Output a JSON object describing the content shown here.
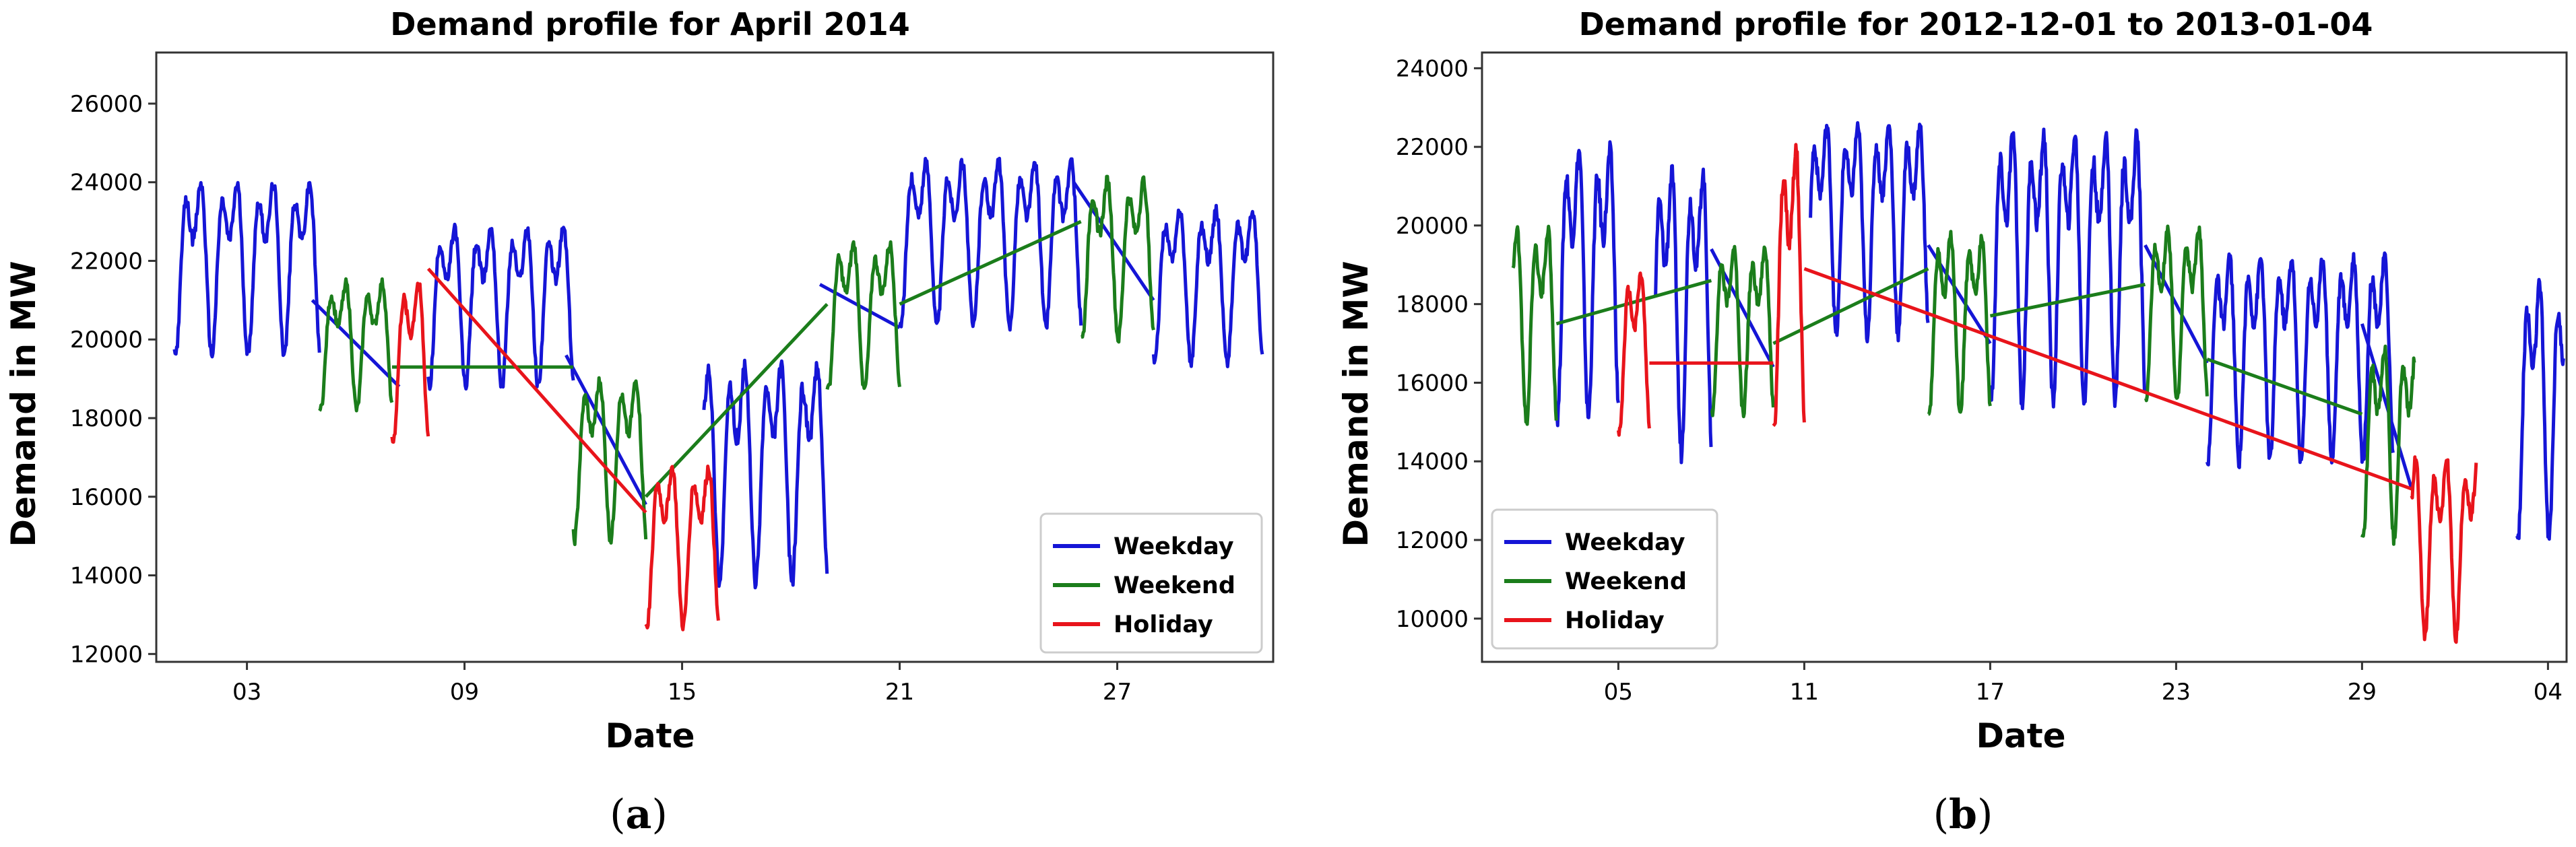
{
  "chart_data": [
    {
      "type": "line",
      "title": "Demand profile for April 2014",
      "xlabel": "Date",
      "ylabel": "Demand in MW",
      "caption": "a",
      "xlim": [
        0.5,
        31.3
      ],
      "ylim": [
        11800,
        27300
      ],
      "x_ticks": [
        3,
        9,
        15,
        21,
        27
      ],
      "x_tick_labels": [
        "03",
        "09",
        "15",
        "21",
        "27"
      ],
      "y_ticks": [
        12000,
        14000,
        16000,
        18000,
        20000,
        22000,
        24000,
        26000
      ],
      "y_tick_labels": [
        "12000",
        "14000",
        "16000",
        "18000",
        "20000",
        "22000",
        "24000",
        "26000"
      ],
      "legend": {
        "location": "lower-right",
        "entries": [
          "Weekday",
          "Weekend",
          "Holiday"
        ]
      },
      "series": [
        {
          "name": "Weekday",
          "color": "#1515d6",
          "profile": {
            "segments": [
              {
                "days": [
                  1,
                  5
                ],
                "mid": 22300,
                "amp": 2700
              },
              {
                "days": [
                  8,
                  12
                ],
                "mid": 21300,
                "amp": 2500
              },
              {
                "days": [
                  15.6,
                  19
                ],
                "mid": 17200,
                "amp": 3400
              },
              {
                "days": [
                  21,
                  26
                ],
                "mid": 22900,
                "amp": 2600
              },
              {
                "days": [
                  28,
                  31
                ],
                "mid": 21800,
                "amp": 2400
              }
            ]
          },
          "connectors": [
            {
              "from": [
                4.8,
                21000
              ],
              "to": [
                7.2,
                18800
              ]
            },
            {
              "from": [
                11.8,
                19600
              ],
              "to": [
                14,
                15800
              ]
            },
            {
              "from": [
                18.8,
                21400
              ],
              "to": [
                21,
                20300
              ]
            },
            {
              "from": [
                25.8,
                24000
              ],
              "to": [
                28,
                21000
              ]
            }
          ]
        },
        {
          "name": "Weekend",
          "color": "#1b7d1b",
          "profile": {
            "segments": [
              {
                "days": [
                  5,
                  7
                ],
                "mid": 20200,
                "amp": 2000
              },
              {
                "days": [
                  12,
                  14
                ],
                "mid": 17400,
                "amp": 2500
              },
              {
                "days": [
                  19,
                  21
                ],
                "mid": 21000,
                "amp": 2300
              },
              {
                "days": [
                  26,
                  28
                ],
                "mid": 22500,
                "amp": 2500
              }
            ]
          },
          "connectors": [
            {
              "from": [
                7,
                19300
              ],
              "to": [
                12,
                19300
              ]
            },
            {
              "from": [
                14,
                16000
              ],
              "to": [
                19,
                20900
              ]
            },
            {
              "from": [
                21,
                20900
              ],
              "to": [
                26,
                23000
              ]
            }
          ]
        },
        {
          "name": "Holiday",
          "color": "#e8141b",
          "profile": {
            "segments": [
              {
                "days": [
                  7,
                  8
                ],
                "mid": 19900,
                "amp": 2500
              },
              {
                "days": [
                  14,
                  16
                ],
                "mid": 15200,
                "amp": 2500
              }
            ]
          },
          "connectors": [
            {
              "from": [
                8,
                21800
              ],
              "to": [
                14,
                15600
              ]
            }
          ]
        }
      ]
    },
    {
      "type": "line",
      "title": "Demand profile for 2012-12-01 to 2013-01-04",
      "xlabel": "Date",
      "ylabel": "Demand in MW",
      "caption": "b",
      "xlim": [
        -0.4,
        34.6
      ],
      "ylim": [
        8900,
        24400
      ],
      "x_ticks": [
        4,
        10,
        16,
        22,
        28,
        34
      ],
      "x_tick_labels": [
        "05",
        "11",
        "17",
        "23",
        "29",
        "04"
      ],
      "y_ticks": [
        10000,
        12000,
        14000,
        16000,
        18000,
        20000,
        22000,
        24000
      ],
      "y_tick_labels": [
        "10000",
        "12000",
        "14000",
        "16000",
        "18000",
        "20000",
        "22000",
        "24000"
      ],
      "legend": {
        "location": "lower-left",
        "entries": [
          "Weekday",
          "Weekend",
          "Holiday"
        ]
      },
      "series": [
        {
          "name": "Weekday",
          "color": "#1515d6",
          "profile": {
            "segments": [
              {
                "days": [
                  2,
                  4
                ],
                "mid": 19300,
                "amp": 4200
              },
              {
                "days": [
                  5.2,
                  7
                ],
                "mid": 18600,
                "amp": 4400
              },
              {
                "days": [
                  10.2,
                  14
                ],
                "mid": 20500,
                "amp": 3300
              },
              {
                "days": [
                  16,
                  21
                ],
                "mid": 19700,
                "amp": 4200
              },
              {
                "days": [
                  23,
                  29
                ],
                "mid": 17200,
                "amp": 3200
              },
              {
                "days": [
                  33,
                  34.5
                ],
                "mid": 16000,
                "amp": 4000
              }
            ]
          },
          "connectors": [
            {
              "from": [
                7,
                19400
              ],
              "to": [
                9,
                16400
              ]
            },
            {
              "from": [
                14,
                19500
              ],
              "to": [
                16,
                17000
              ]
            },
            {
              "from": [
                21,
                19500
              ],
              "to": [
                23,
                16500
              ]
            },
            {
              "from": [
                28,
                17500
              ],
              "to": [
                29.6,
                13300
              ]
            }
          ]
        },
        {
          "name": "Weekend",
          "color": "#1b7d1b",
          "profile": {
            "segments": [
              {
                "days": [
                  0.6,
                  2
                ],
                "mid": 18000,
                "amp": 3000
              },
              {
                "days": [
                  7,
                  9
                ],
                "mid": 17800,
                "amp": 2600
              },
              {
                "days": [
                  14,
                  16
                ],
                "mid": 18000,
                "amp": 2800
              },
              {
                "days": [
                  21,
                  23
                ],
                "mid": 18200,
                "amp": 2700
              },
              {
                "days": [
                  28,
                  29.7
                ],
                "mid": 15000,
                "amp": 3000
              }
            ]
          },
          "connectors": [
            {
              "from": [
                2,
                17500
              ],
              "to": [
                7,
                18600
              ]
            },
            {
              "from": [
                9,
                17000
              ],
              "to": [
                14,
                18900
              ]
            },
            {
              "from": [
                16,
                17700
              ],
              "to": [
                21,
                18500
              ]
            },
            {
              "from": [
                23,
                16600
              ],
              "to": [
                28,
                15200
              ]
            }
          ]
        },
        {
          "name": "Holiday",
          "color": "#e8141b",
          "profile": {
            "segments": [
              {
                "days": [
                  4,
                  5
                ],
                "mid": 17200,
                "amp": 2500
              },
              {
                "days": [
                  9,
                  10
                ],
                "mid": 19200,
                "amp": 4400
              },
              {
                "days": [
                  29.6,
                  31.7
                ],
                "mid": 12300,
                "amp": 2800
              }
            ]
          },
          "connectors": [
            {
              "from": [
                5,
                16500
              ],
              "to": [
                9,
                16500
              ]
            },
            {
              "from": [
                10,
                18900
              ],
              "to": [
                29.6,
                13300
              ]
            }
          ]
        }
      ]
    }
  ]
}
